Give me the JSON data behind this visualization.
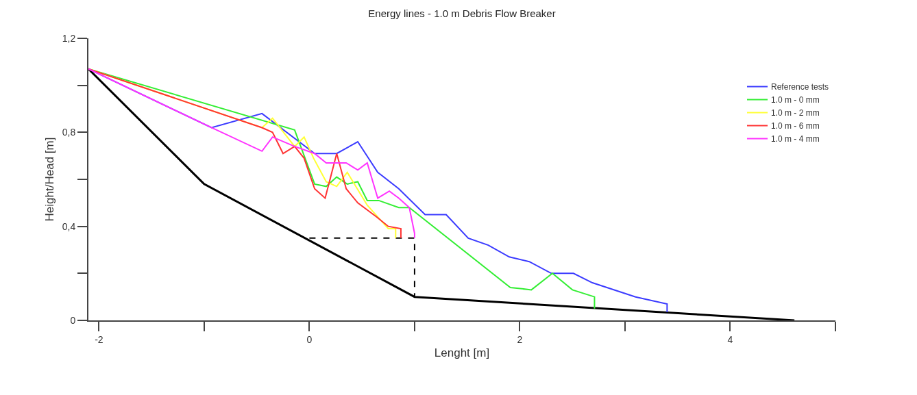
{
  "chart_data": {
    "type": "line",
    "title": "Energy lines - 1.0 m Debris Flow Breaker",
    "xlabel": "Lenght [m]",
    "ylabel": "Height/Head [m]",
    "xlim": [
      -2.1,
      5
    ],
    "ylim": [
      0,
      1.2
    ],
    "xticks": [
      -2,
      {
        "value": -1,
        "label": null
      },
      0,
      {
        "value": 1,
        "label": null
      },
      2,
      {
        "value": 3,
        "label": null
      },
      4,
      {
        "value": 5,
        "label": null
      }
    ],
    "yticks": [
      0,
      {
        "value": 0.2,
        "label": null
      },
      {
        "value": 0.4,
        "label": "0,4"
      },
      {
        "value": 0.6,
        "label": null
      },
      {
        "value": 0.8,
        "label": "0,8"
      },
      {
        "value": 1.0,
        "label": null
      },
      {
        "value": 1.2,
        "label": "1,2"
      }
    ],
    "legend": "top right",
    "marker": "none",
    "series": [
      {
        "color": "#000000",
        "x": [
          -2.1,
          -1.0,
          1.0,
          4.61
        ],
        "values": [
          1.07,
          0.58,
          0.1,
          0.0
        ]
      },
      {
        "color": "#000000",
        "line_style": "dashed",
        "x": [
          0.0,
          1.0,
          1.0
        ],
        "values": [
          0.35,
          0.35,
          0.1
        ]
      },
      {
        "name": "Reference tests",
        "color": "#3b3bff",
        "x": [
          -2.1,
          -0.93,
          -0.45,
          0.05,
          0.26,
          0.46,
          0.65,
          0.85,
          1.1,
          1.3,
          1.51,
          1.7,
          1.9,
          2.09,
          2.3,
          2.51,
          2.69,
          3.1,
          3.4,
          3.4
        ],
        "values": [
          1.07,
          0.82,
          0.88,
          0.71,
          0.71,
          0.76,
          0.63,
          0.56,
          0.45,
          0.45,
          0.35,
          0.32,
          0.27,
          0.25,
          0.2,
          0.2,
          0.16,
          0.1,
          0.07,
          0.035
        ]
      },
      {
        "name": "1.0 m - 0 mm",
        "color": "#33ee33",
        "x": [
          -2.1,
          -0.14,
          0.05,
          0.16,
          0.26,
          0.36,
          0.46,
          0.55,
          0.66,
          0.85,
          0.95,
          1.91,
          2.11,
          2.31,
          2.5,
          2.71,
          2.71
        ],
        "values": [
          1.07,
          0.81,
          0.58,
          0.57,
          0.61,
          0.58,
          0.59,
          0.51,
          0.51,
          0.48,
          0.48,
          0.14,
          0.13,
          0.2,
          0.13,
          0.1,
          0.05
        ]
      },
      {
        "name": "1.0 m - 2 mm",
        "color": "#ffff33",
        "x": [
          -2.1,
          -0.45,
          -0.35,
          -0.14,
          -0.05,
          0.04,
          0.16,
          0.26,
          0.36,
          0.55,
          0.75,
          0.82,
          0.82
        ],
        "values": [
          1.07,
          0.82,
          0.86,
          0.74,
          0.78,
          0.69,
          0.59,
          0.57,
          0.63,
          0.49,
          0.39,
          0.39,
          0.35
        ]
      },
      {
        "name": "1.0 m - 6 mm",
        "color": "#ff3333",
        "x": [
          -2.1,
          -0.45,
          -0.35,
          -0.25,
          -0.14,
          -0.05,
          0.05,
          0.15,
          0.26,
          0.35,
          0.46,
          0.64,
          0.75,
          0.87,
          0.87
        ],
        "values": [
          1.07,
          0.82,
          0.8,
          0.71,
          0.74,
          0.69,
          0.56,
          0.52,
          0.71,
          0.56,
          0.5,
          0.44,
          0.4,
          0.39,
          0.35
        ]
      },
      {
        "name": "1.0 m - 4 mm",
        "color": "#ff33ff",
        "x": [
          -2.1,
          -0.93,
          -0.45,
          -0.35,
          -0.14,
          0.05,
          0.16,
          0.35,
          0.46,
          0.55,
          0.65,
          0.76,
          0.85,
          0.95,
          1.0,
          1.0
        ],
        "values": [
          1.07,
          0.82,
          0.72,
          0.78,
          0.74,
          0.71,
          0.67,
          0.67,
          0.64,
          0.67,
          0.52,
          0.55,
          0.52,
          0.48,
          0.37,
          0.35
        ]
      }
    ]
  }
}
